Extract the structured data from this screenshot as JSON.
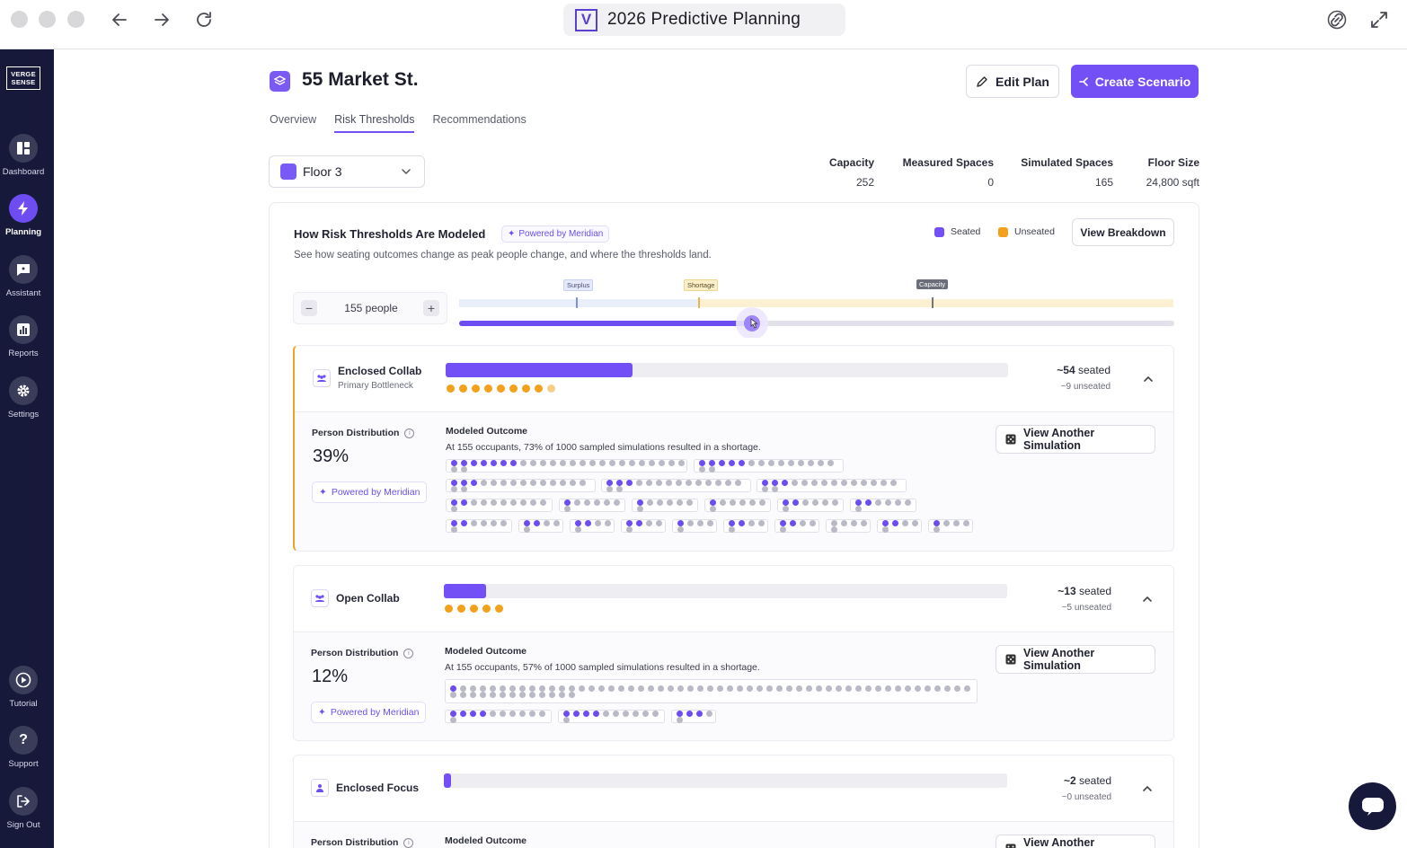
{
  "browser": {
    "favicon_letter": "V",
    "title": "2026 Predictive Planning"
  },
  "sidebar": {
    "logo": "VERGE SENSE",
    "items": [
      {
        "label": "Dashboard",
        "icon": "dashboard-icon"
      },
      {
        "label": "Planning",
        "icon": "lightning-icon",
        "active": true
      },
      {
        "label": "Assistant",
        "icon": "chat-icon"
      },
      {
        "label": "Reports",
        "icon": "chart-icon"
      },
      {
        "label": "Settings",
        "icon": "gear-icon"
      }
    ],
    "bottom_items": [
      {
        "label": "Tutorial",
        "icon": "play-icon"
      },
      {
        "label": "Support",
        "icon": "question-icon"
      },
      {
        "label": "Sign Out",
        "icon": "sign-out-icon"
      }
    ]
  },
  "header": {
    "title": "55 Market St.",
    "edit_label": "Edit Plan",
    "create_label": "Create Scenario"
  },
  "tabs": [
    "Overview",
    "Risk Thresholds",
    "Recommendations"
  ],
  "active_tab": "Risk Thresholds",
  "floor": {
    "selected": "Floor 3"
  },
  "stats": [
    {
      "label": "Capacity",
      "value": "252"
    },
    {
      "label": "Measured Spaces",
      "value": "0"
    },
    {
      "label": "Simulated Spaces",
      "value": "165"
    },
    {
      "label": "Floor Size",
      "value": "24,800 sqft"
    }
  ],
  "model": {
    "title": "How Risk Thresholds Are Modeled",
    "badge": "Powered by Meridian",
    "subtitle": "See how seating outcomes change as peak people change, and where the thresholds land.",
    "legend": [
      {
        "label": "Seated",
        "color": "#7350f5"
      },
      {
        "label": "Unseated",
        "color": "#f3a11a"
      }
    ],
    "view_breakdown": "View Breakdown",
    "people": "155 people",
    "people_count": 155,
    "thresholds": {
      "surplus": "Surplus",
      "shortage": "Shortage",
      "capacity": "Capacity"
    },
    "slider_fraction": 0.41
  },
  "sections": [
    {
      "name": "Enclosed Collab",
      "subtitle": "Primary Bottleneck",
      "fill_fraction": 0.33,
      "orange_dots": 9,
      "seated_num": "~54",
      "seated_word": "seated",
      "unseated": "~9 unseated",
      "pd_label": "Person Distribution",
      "pd_value": "39%",
      "badge": "Powered by Meridian",
      "mo_title": "Modeled Outcome",
      "mo_desc": "At 155 occupants, 73% of 1000 sampled simulations resulted in a shortage.",
      "sim_label": "View Another Simulation"
    },
    {
      "name": "Open Collab",
      "subtitle": "",
      "fill_fraction": 0.075,
      "orange_dots": 5,
      "seated_num": "~13",
      "seated_word": "seated",
      "unseated": "~5 unseated",
      "pd_label": "Person Distribution",
      "pd_value": "12%",
      "badge": "Powered by Meridian",
      "mo_title": "Modeled Outcome",
      "mo_desc": "At 155 occupants, 57% of 1000 sampled simulations resulted in a shortage.",
      "sim_label": "View Another Simulation"
    },
    {
      "name": "Enclosed Focus",
      "subtitle": "",
      "fill_fraction": 0.012,
      "orange_dots": 0,
      "seated_num": "~2",
      "seated_word": "seated",
      "unseated": "~0 unseated",
      "pd_label": "Person Distribution",
      "mo_title": "Modeled Outcome",
      "sim_label": "View Another Simulation"
    }
  ]
}
